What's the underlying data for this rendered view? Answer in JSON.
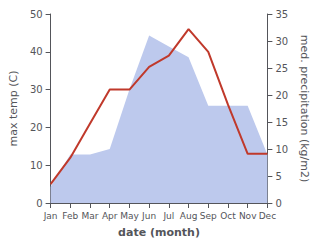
{
  "chart_data": {
    "type": "line",
    "xlabel": "date (month)",
    "ylabel": "max temp (C)",
    "y2label": "med. precipitation (kg/m2)",
    "categories": [
      "Jan",
      "Feb",
      "Mar",
      "Apr",
      "May",
      "Jun",
      "Jul",
      "Aug",
      "Sep",
      "Oct",
      "Nov",
      "Dec"
    ],
    "series": [
      {
        "type": "area",
        "color": "#bdc9ed",
        "axis": "y2",
        "values": [
          3,
          9,
          9,
          10,
          21,
          31,
          29,
          27,
          18,
          18,
          18,
          9
        ]
      },
      {
        "type": "line",
        "color": "#c0392b",
        "values": [
          5,
          12,
          21,
          30,
          30,
          36,
          39,
          46,
          40,
          26,
          13,
          13
        ]
      }
    ],
    "ylim": [
      0,
      50
    ],
    "yticks": [
      0,
      10,
      20,
      30,
      40,
      50
    ],
    "y2lim": [
      0,
      35
    ],
    "y2ticks": [
      0,
      5,
      10,
      15,
      20,
      25,
      30,
      35
    ],
    "grid": false
  }
}
